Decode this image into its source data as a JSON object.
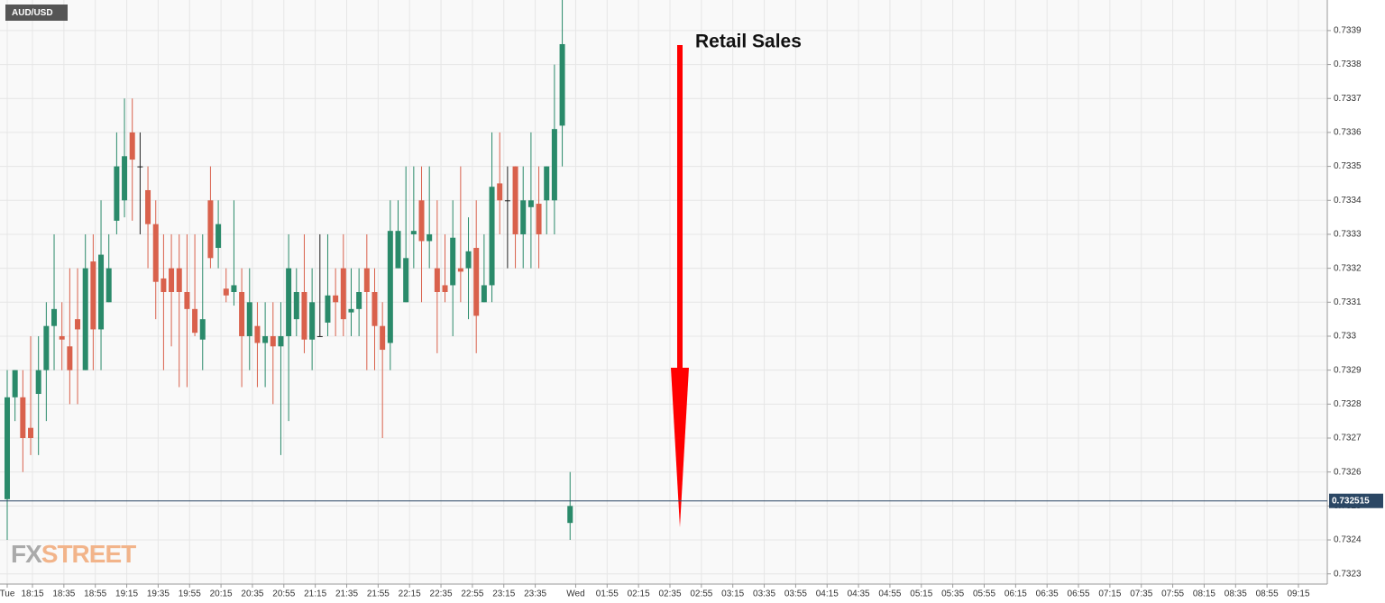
{
  "chart_data": {
    "type": "candlestick",
    "symbol": "AUD/USD",
    "annotation": "Retail Sales",
    "logo": [
      "FX",
      "STREET"
    ],
    "up_color": "#2a8a6a",
    "down_color": "#d9614c",
    "doji_color": "#222222",
    "grid": true,
    "last_price": 0.732515,
    "last_price_color": "#2b4764",
    "ylim": [
      0.73227,
      0.73399
    ],
    "yticks": [
      0.7323,
      0.7324,
      0.7325,
      0.7326,
      0.7327,
      0.7328,
      0.7329,
      0.733,
      0.7331,
      0.7332,
      0.7333,
      0.7334,
      0.7335,
      0.7336,
      0.7337,
      0.7338,
      0.7339
    ],
    "xticks": [
      "Tue",
      "18:15",
      "18:35",
      "18:55",
      "19:15",
      "19:35",
      "19:55",
      "20:15",
      "20:35",
      "20:55",
      "21:15",
      "21:35",
      "21:55",
      "22:15",
      "22:35",
      "22:55",
      "23:15",
      "23:35",
      "Wed",
      "01:55",
      "02:15",
      "02:35",
      "02:55",
      "03:15",
      "03:35",
      "03:55",
      "04:15",
      "04:35",
      "04:55",
      "05:15",
      "05:35",
      "05:55",
      "06:15",
      "06:35",
      "06:55",
      "07:15",
      "07:35",
      "07:55",
      "08:15",
      "08:35",
      "08:55",
      "09:15"
    ],
    "open": [
      0.73252,
      0.73282,
      0.73282,
      0.73273,
      0.73283,
      0.7329,
      0.73303,
      0.733,
      0.73297,
      0.73305,
      0.7329,
      0.73322,
      0.73302,
      0.7331,
      0.73334,
      0.7334,
      0.7336,
      0.7335,
      0.73343,
      0.73333,
      0.73317,
      0.7332,
      0.7332,
      0.73313,
      0.73308,
      0.73299,
      0.7334,
      0.73326,
      0.73314,
      0.73313,
      0.73313,
      0.733,
      0.73303,
      0.73298,
      0.733,
      0.73297,
      0.733,
      0.73305,
      0.73313,
      0.73299,
      0.733,
      0.73304,
      0.73312,
      0.7332,
      0.73307,
      0.73308,
      0.7332,
      0.73313,
      0.73303,
      0.73298,
      0.7332,
      0.7331,
      0.7333,
      0.7334,
      0.73328,
      0.7332,
      0.73315,
      0.73315,
      0.7332,
      0.7332,
      0.73326,
      0.7331,
      0.73315,
      0.73345,
      0.7334,
      0.7335,
      0.7333,
      0.73338,
      0.73339,
      0.7334,
      0.7334,
      0.73362,
      0.73245
    ],
    "high": [
      0.7329,
      0.7329,
      0.7329,
      0.733,
      0.733,
      0.7331,
      0.7333,
      0.7331,
      0.7332,
      0.7332,
      0.7333,
      0.7333,
      0.7334,
      0.7333,
      0.7336,
      0.7337,
      0.7337,
      0.7336,
      0.7335,
      0.7334,
      0.7333,
      0.7333,
      0.7333,
      0.7333,
      0.7333,
      0.7333,
      0.7335,
      0.7334,
      0.7332,
      0.7334,
      0.7332,
      0.7332,
      0.7331,
      0.7331,
      0.7331,
      0.7331,
      0.7333,
      0.7332,
      0.7333,
      0.7332,
      0.7333,
      0.7333,
      0.7332,
      0.7333,
      0.7332,
      0.7332,
      0.7333,
      0.7332,
      0.7331,
      0.7334,
      0.7334,
      0.7335,
      0.7335,
      0.7335,
      0.7335,
      0.7334,
      0.7333,
      0.7334,
      0.7335,
      0.73335,
      0.7334,
      0.7333,
      0.7336,
      0.7336,
      0.7335,
      0.7335,
      0.7335,
      0.7336,
      0.7335,
      0.7335,
      0.7338,
      0.73399,
      0.7326
    ],
    "low": [
      0.7324,
      0.73275,
      0.7326,
      0.73265,
      0.73265,
      0.73275,
      0.7329,
      0.7329,
      0.7328,
      0.7328,
      0.7329,
      0.7329,
      0.7329,
      0.7331,
      0.7333,
      0.73335,
      0.73334,
      0.7333,
      0.7332,
      0.73305,
      0.7329,
      0.73297,
      0.73285,
      0.73285,
      0.733,
      0.7329,
      0.7332,
      0.7332,
      0.7331,
      0.73309,
      0.73285,
      0.7329,
      0.73285,
      0.73285,
      0.7328,
      0.73265,
      0.73275,
      0.733,
      0.73295,
      0.7329,
      0.733,
      0.733,
      0.733,
      0.733,
      0.733,
      0.733,
      0.7329,
      0.7329,
      0.7327,
      0.7329,
      0.7332,
      0.7331,
      0.7332,
      0.7331,
      0.7332,
      0.73295,
      0.7331,
      0.733,
      0.7331,
      0.73305,
      0.73295,
      0.7331,
      0.7331,
      0.7333,
      0.7332,
      0.7332,
      0.7332,
      0.7332,
      0.7332,
      0.7333,
      0.7333,
      0.7335,
      0.7324
    ],
    "close": [
      0.73282,
      0.7329,
      0.7327,
      0.7327,
      0.7329,
      0.73303,
      0.73308,
      0.73299,
      0.7329,
      0.73302,
      0.7332,
      0.73302,
      0.73324,
      0.7332,
      0.7335,
      0.73353,
      0.73352,
      0.7335,
      0.73333,
      0.73316,
      0.73313,
      0.73313,
      0.73313,
      0.73308,
      0.73301,
      0.73305,
      0.73323,
      0.73333,
      0.73312,
      0.73315,
      0.733,
      0.7331,
      0.73298,
      0.733,
      0.73297,
      0.733,
      0.7332,
      0.73313,
      0.73299,
      0.7331,
      0.733,
      0.73312,
      0.7331,
      0.73305,
      0.73308,
      0.73313,
      0.73313,
      0.73303,
      0.73296,
      0.73331,
      0.73331,
      0.73323,
      0.73331,
      0.73328,
      0.7333,
      0.73313,
      0.73313,
      0.73329,
      0.73319,
      0.73325,
      0.73306,
      0.73315,
      0.73344,
      0.7334,
      0.7334,
      0.7333,
      0.7334,
      0.7334,
      0.7333,
      0.7335,
      0.73361,
      0.73386,
      0.7325
    ]
  }
}
